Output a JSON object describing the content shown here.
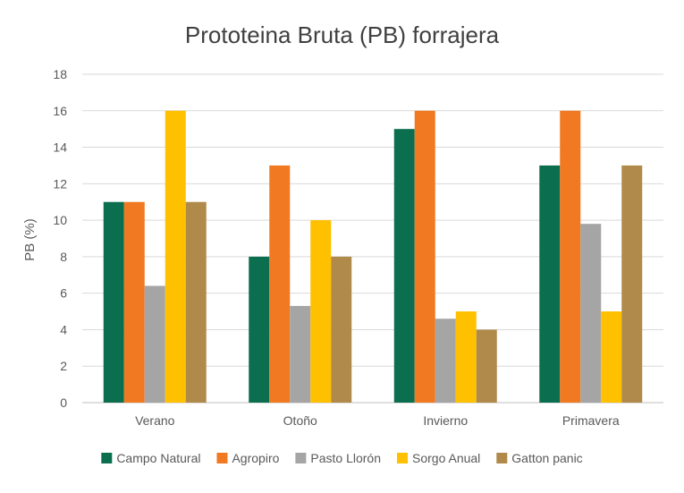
{
  "chart_data": {
    "type": "bar",
    "title": "Prototeina Bruta (PB) forrajera",
    "xlabel": "",
    "ylabel": "PB (%)",
    "ylim": [
      0,
      18
    ],
    "yticks": [
      0,
      2,
      4,
      6,
      8,
      10,
      12,
      14,
      16,
      18
    ],
    "grid": true,
    "legend_position": "bottom",
    "categories": [
      "Verano",
      "Otoño",
      "Invierno",
      "Primavera"
    ],
    "series": [
      {
        "name": "Campo Natural",
        "color": "#0b6e4f",
        "values": [
          11,
          8,
          15,
          13
        ]
      },
      {
        "name": "Agropiro",
        "color": "#f07921",
        "values": [
          11,
          13,
          16,
          16
        ]
      },
      {
        "name": "Pasto Llorón",
        "color": "#a5a5a5",
        "values": [
          6.4,
          5.3,
          4.6,
          9.8
        ]
      },
      {
        "name": "Sorgo Anual",
        "color": "#ffc000",
        "values": [
          16,
          10,
          5,
          5
        ]
      },
      {
        "name": "Gatton panic",
        "color": "#b08a4a",
        "values": [
          11,
          8,
          4,
          13
        ]
      }
    ]
  }
}
